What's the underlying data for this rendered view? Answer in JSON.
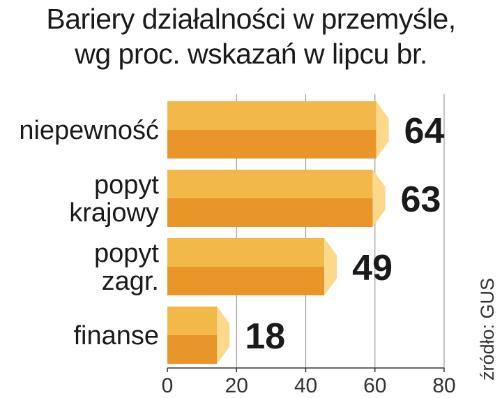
{
  "chart_data": {
    "type": "bar",
    "orientation": "horizontal",
    "title_lines": [
      "Bariery działalności w przemyśle,",
      "wg proc. wskazań w lipcu br."
    ],
    "categories": [
      [
        "niepewność"
      ],
      [
        "popyt",
        "krajowy"
      ],
      [
        "popyt",
        "zagr."
      ],
      [
        "finanse"
      ]
    ],
    "values": [
      64,
      63,
      49,
      18
    ],
    "xlim": [
      0,
      80
    ],
    "xticks": [
      0,
      20,
      40,
      60,
      80
    ],
    "grid": true,
    "source": "źródło: GUS",
    "colors": {
      "bar_top": "#F2B94A",
      "bar_bottom": "#E8962A",
      "bar_tip": "#FAD98A",
      "grid": "#9a9a9a",
      "axis": "#333333"
    }
  }
}
